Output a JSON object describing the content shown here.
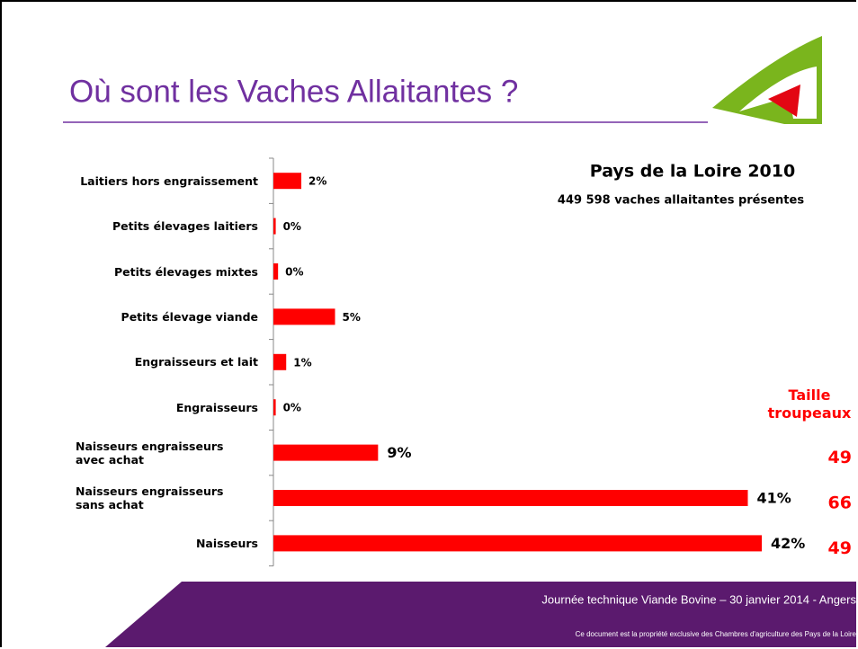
{
  "chart_data": {
    "type": "bar",
    "orientation": "horizontal",
    "title": "Où sont les Vaches Allaitantes ?",
    "subtitle": "Pays de la Loire 2010",
    "note": "449 598 vaches allaitantes présentes",
    "categories": [
      "Laitiers hors engraissement",
      "Petits élevages laitiers",
      "Petits élevages mixtes",
      "Petits élevage viande",
      "Engraisseurs et lait",
      "Engraisseurs",
      "Naisseurs engraisseurs avec achat",
      "Naisseurs engraisseurs sans achat",
      "Naisseurs"
    ],
    "values": [
      2.4,
      0.2,
      0.4,
      5.3,
      1.1,
      0.2,
      9,
      40.8,
      42
    ],
    "value_labels": [
      "2%",
      "0%",
      "0%",
      "5%",
      "1%",
      "0%",
      "9%",
      "41%",
      "42%"
    ],
    "color": "#ff0000",
    "herd_size_title": "Taille troupeaux",
    "herd_size": [
      null,
      null,
      null,
      null,
      null,
      null,
      49,
      66,
      49
    ],
    "footer": "Journée technique Viande Bovine – 30 janvier 2014 - Angers",
    "footer_note": "Ce document est la propriété exclusive des Chambres d'agriculture des Pays de la Loire"
  }
}
